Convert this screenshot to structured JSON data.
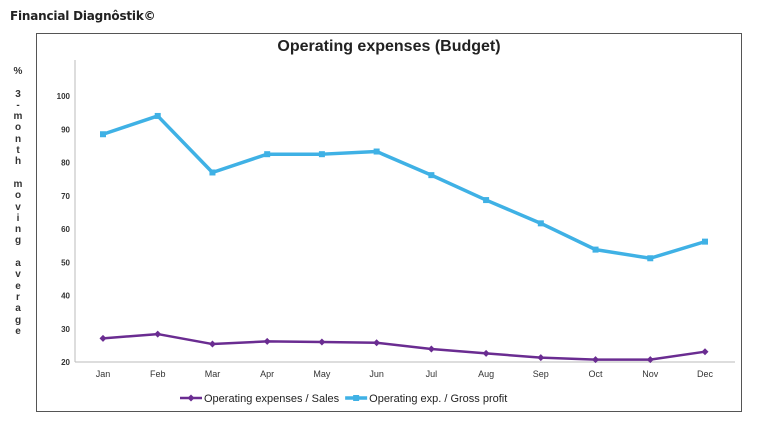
{
  "brand": "Financial Diagnôstik©",
  "chart_data": {
    "type": "line",
    "title": "Operating expenses (Budget)",
    "ylabel": "% 3-month moving average",
    "xlabel": "",
    "categories": [
      "Jan",
      "Feb",
      "Mar",
      "Apr",
      "May",
      "Jun",
      "Jul",
      "Aug",
      "Sep",
      "Oct",
      "Nov",
      "Dec"
    ],
    "ylim": [
      20,
      100
    ],
    "yticks": [
      20,
      30,
      40,
      50,
      60,
      70,
      80,
      90,
      100
    ],
    "grid": false,
    "legend": "bottom",
    "series": [
      {
        "name": "Operating expenses / Sales",
        "color": "#6a2c91",
        "marker": "diamond",
        "values": [
          27.1,
          28.4,
          25.4,
          26.2,
          26.0,
          25.8,
          23.9,
          22.6,
          21.3,
          20.7,
          20.7,
          23.1
        ]
      },
      {
        "name": "Operating exp. / Gross profit",
        "color": "#3fb1e5",
        "marker": "square",
        "values": [
          88.5,
          94.0,
          77.0,
          82.5,
          82.5,
          83.3,
          76.2,
          68.7,
          61.7,
          53.8,
          51.2,
          56.2
        ]
      }
    ]
  }
}
